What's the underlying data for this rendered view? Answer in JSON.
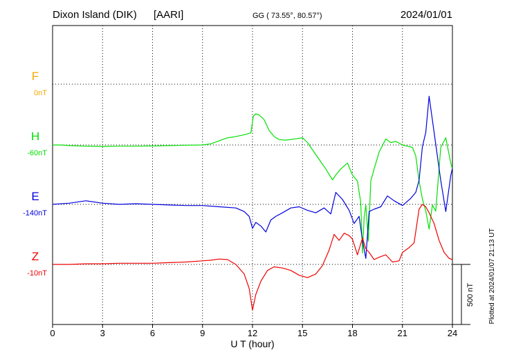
{
  "header": {
    "station": "Dixon Island (DIK)",
    "institute": "[AARI]",
    "coords": "GG ( 73.55°,  80.57°)",
    "date": "2024/01/01"
  },
  "footer": {
    "plotted_note": "Plotted at 2024/01/07 21:13 UT",
    "scale_label": "500 nT"
  },
  "chart_data": {
    "type": "line",
    "xlabel": "U T (hour)",
    "xlim": [
      0,
      24
    ],
    "xticks": [
      "0",
      "3",
      "6",
      "9",
      "12",
      "15",
      "18",
      "21",
      "24"
    ],
    "scale_bar_nT": 500,
    "series": [
      {
        "name": "F",
        "baseline_label": "0nT",
        "color": "#f5a800",
        "x": [],
        "y": []
      },
      {
        "name": "H",
        "baseline_label": "-60nT",
        "color": "#00e000",
        "x": [
          0,
          0.5,
          1,
          2,
          3,
          4,
          5,
          6,
          7,
          8,
          9,
          9.5,
          10,
          10.5,
          11,
          11.5,
          11.9,
          12.05,
          12.2,
          12.4,
          12.7,
          13,
          13.3,
          13.6,
          14,
          14.5,
          15,
          15.3,
          15.6,
          16,
          16.4,
          16.8,
          17,
          17.3,
          17.7,
          18.0,
          18.3,
          18.5,
          18.6,
          18.7,
          18.8,
          18.95,
          19.1,
          19.3,
          19.6,
          20,
          20.3,
          20.6,
          21,
          21.3,
          21.6,
          21.8,
          22.0,
          22.2,
          22.4,
          22.6,
          22.8,
          23.0,
          23.3,
          23.6,
          23.9,
          24
        ],
        "y": [
          0,
          0,
          -5,
          -10,
          -12,
          -10,
          -10,
          -8,
          -5,
          -2,
          0,
          10,
          35,
          60,
          70,
          85,
          100,
          240,
          260,
          250,
          210,
          120,
          70,
          45,
          40,
          50,
          60,
          20,
          -40,
          -120,
          -200,
          -290,
          -250,
          -200,
          -150,
          -250,
          -300,
          -480,
          -900,
          -600,
          -500,
          -800,
          -300,
          -200,
          -60,
          50,
          20,
          30,
          0,
          -10,
          -20,
          -90,
          -300,
          -450,
          -550,
          -700,
          -500,
          -550,
          -20,
          60,
          -150,
          -200
        ]
      },
      {
        "name": "E",
        "baseline_label": "-140nT",
        "color": "#0000dd",
        "x": [
          0,
          1,
          2,
          3,
          4,
          5,
          6,
          7,
          8,
          9,
          10,
          11,
          11.5,
          11.8,
          12.0,
          12.2,
          12.5,
          12.8,
          13.1,
          13.4,
          13.8,
          14.3,
          14.8,
          15.3,
          15.8,
          16.3,
          16.7,
          17.0,
          17.4,
          17.8,
          18.1,
          18.4,
          18.6,
          18.8,
          19.0,
          19.3,
          19.7,
          20.1,
          20.5,
          21.0,
          21.5,
          21.8,
          22.0,
          22.2,
          22.4,
          22.6,
          22.8,
          23.0,
          23.3,
          23.6,
          23.9,
          24
        ],
        "y": [
          0,
          10,
          30,
          10,
          0,
          5,
          0,
          -5,
          -10,
          -10,
          -20,
          -30,
          -60,
          -100,
          -200,
          -150,
          -180,
          -230,
          -130,
          -100,
          -70,
          -30,
          -20,
          -50,
          -70,
          -30,
          -80,
          100,
          40,
          -50,
          -160,
          -100,
          -300,
          -450,
          -60,
          -40,
          -20,
          70,
          30,
          -10,
          50,
          100,
          200,
          480,
          600,
          900,
          700,
          500,
          200,
          -60,
          240,
          300
        ]
      },
      {
        "name": "Z",
        "baseline_label": "-10nT",
        "color": "#ee0000",
        "x": [
          0,
          1,
          2,
          3,
          4,
          5,
          6,
          7,
          8,
          9,
          9.5,
          10,
          10.5,
          11,
          11.5,
          11.8,
          12.0,
          12.2,
          12.5,
          12.9,
          13.3,
          13.8,
          14.3,
          14.8,
          15.3,
          15.8,
          16.2,
          16.6,
          16.9,
          17.2,
          17.5,
          17.8,
          18.0,
          18.3,
          18.6,
          18.8,
          19.0,
          19.3,
          19.6,
          20.0,
          20.4,
          20.8,
          21.0,
          21.4,
          21.7,
          22.0,
          22.2,
          22.4,
          22.6,
          22.9,
          23.2,
          23.5,
          23.8,
          24
        ],
        "y": [
          0,
          0,
          5,
          5,
          10,
          10,
          10,
          15,
          20,
          30,
          35,
          45,
          40,
          0,
          -80,
          -200,
          -380,
          -250,
          -140,
          -50,
          -20,
          -30,
          -50,
          -90,
          -110,
          -80,
          -10,
          120,
          250,
          200,
          260,
          240,
          210,
          80,
          220,
          130,
          100,
          40,
          60,
          80,
          20,
          30,
          100,
          140,
          180,
          460,
          500,
          480,
          430,
          340,
          200,
          100,
          50,
          40
        ]
      }
    ]
  }
}
